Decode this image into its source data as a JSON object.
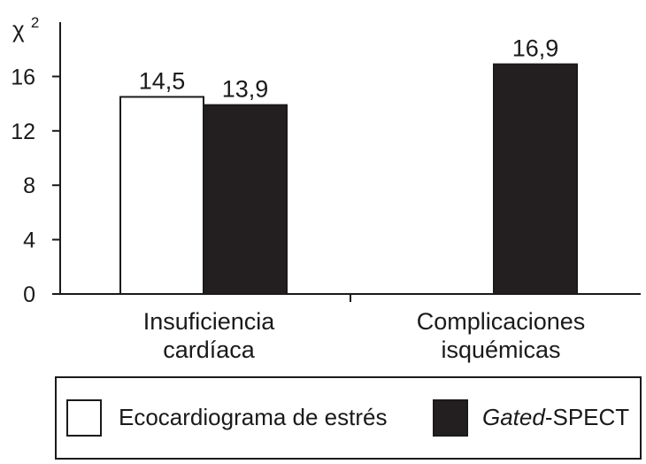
{
  "chart_data": {
    "type": "bar",
    "ylabel": "χ",
    "ylabel_sup": "2",
    "ylim": [
      0,
      20
    ],
    "yticks": [
      "0",
      "4",
      "8",
      "12",
      "16"
    ],
    "categories": [
      {
        "line1": "Insuficiencia",
        "line2": "cardíaca"
      },
      {
        "line1": "Complicaciones",
        "line2": "isquémicas"
      }
    ],
    "series": [
      {
        "name": "Ecocardiograma de estrés",
        "color": "#ffffff",
        "values": [
          14.5,
          null
        ],
        "labels": [
          "14,5",
          ""
        ]
      },
      {
        "name_italic": "Gated",
        "name_rest": "-SPECT",
        "color": "#231f20",
        "values": [
          13.9,
          16.9
        ],
        "labels": [
          "13,9",
          "16,9"
        ]
      }
    ],
    "grid": false,
    "legend_position": "bottom"
  }
}
